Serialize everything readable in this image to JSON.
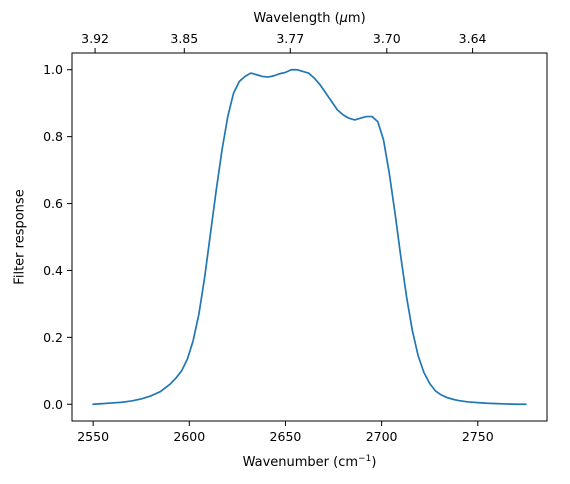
{
  "chart_data": {
    "type": "line",
    "title": "",
    "xlabel": "Wavenumber (cm",
    "xlabel_superscript": "−1",
    "xlabel_suffix": ")",
    "ylabel": "Filter response",
    "secondary_xlabel": "Wavelength (",
    "secondary_xlabel_symbol": "μ",
    "secondary_xlabel_suffix": "m)",
    "xlim": [
      2539,
      2786
    ],
    "ylim": [
      -0.05,
      1.05
    ],
    "x_ticks": [
      2550,
      2600,
      2650,
      2700,
      2750
    ],
    "x_tick_labels": [
      "2550",
      "2600",
      "2650",
      "2700",
      "2750"
    ],
    "y_ticks": [
      0.0,
      0.2,
      0.4,
      0.6,
      0.8,
      1.0
    ],
    "y_tick_labels": [
      "0.0",
      "0.2",
      "0.4",
      "0.6",
      "0.8",
      "1.0"
    ],
    "secondary_x_ticks": [
      2551.0,
      2597.4,
      2652.5,
      2702.7,
      2747.3
    ],
    "secondary_x_tick_labels": [
      "3.92",
      "3.85",
      "3.77",
      "3.70",
      "3.64"
    ],
    "grid": false,
    "legend": "none",
    "series": [
      {
        "color": "#1f77b4",
        "x": [
          2550,
          2555,
          2560,
          2565,
          2570,
          2575,
          2580,
          2585,
          2590,
          2593,
          2596,
          2599,
          2602,
          2605,
          2608,
          2611,
          2614,
          2617,
          2620,
          2623,
          2626,
          2629,
          2632,
          2635,
          2638,
          2641,
          2644,
          2647,
          2650,
          2653,
          2656,
          2659,
          2662,
          2665,
          2668,
          2671,
          2674,
          2677,
          2680,
          2683,
          2686,
          2689,
          2692,
          2695,
          2698,
          2701,
          2704,
          2707,
          2710,
          2713,
          2716,
          2719,
          2722,
          2725,
          2728,
          2731,
          2734,
          2737,
          2740,
          2745,
          2750,
          2755,
          2760,
          2765,
          2770,
          2775
        ],
        "y": [
          0.0,
          0.002,
          0.004,
          0.006,
          0.01,
          0.016,
          0.025,
          0.038,
          0.06,
          0.078,
          0.1,
          0.135,
          0.19,
          0.27,
          0.38,
          0.51,
          0.64,
          0.76,
          0.86,
          0.93,
          0.965,
          0.98,
          0.99,
          0.985,
          0.98,
          0.978,
          0.982,
          0.988,
          0.992,
          1.0,
          1.0,
          0.995,
          0.99,
          0.975,
          0.955,
          0.93,
          0.905,
          0.88,
          0.865,
          0.855,
          0.85,
          0.855,
          0.86,
          0.86,
          0.845,
          0.79,
          0.69,
          0.57,
          0.44,
          0.32,
          0.22,
          0.145,
          0.095,
          0.062,
          0.04,
          0.028,
          0.02,
          0.015,
          0.011,
          0.007,
          0.005,
          0.003,
          0.002,
          0.001,
          0.0,
          0.0
        ]
      }
    ]
  }
}
